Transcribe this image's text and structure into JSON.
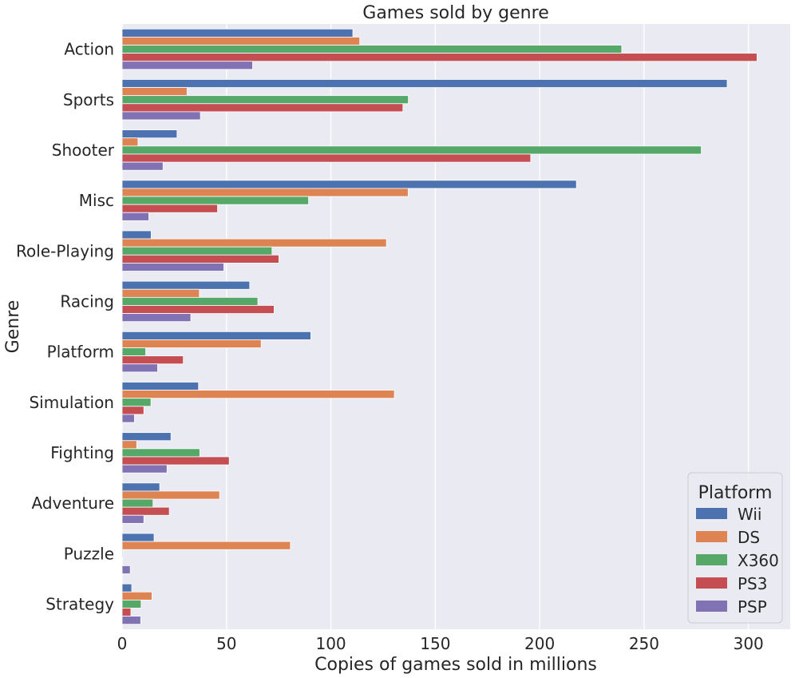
{
  "chart_data": {
    "type": "bar",
    "orientation": "horizontal",
    "title": "Games sold by genre",
    "xlabel": "Copies of games sold in millions",
    "ylabel": "Genre",
    "xlim": [
      0,
      320
    ],
    "xticks": [
      0,
      50,
      100,
      150,
      200,
      250,
      300
    ],
    "grid": true,
    "legend_title": "Platform",
    "legend_position": "lower right",
    "categories": [
      "Action",
      "Sports",
      "Shooter",
      "Misc",
      "Role-Playing",
      "Racing",
      "Platform",
      "Simulation",
      "Fighting",
      "Adventure",
      "Puzzle",
      "Strategy"
    ],
    "series": [
      {
        "name": "Wii",
        "color": "#4c72b0",
        "values": [
          110.5,
          289.8,
          26.3,
          217.6,
          13.9,
          61.1,
          90.4,
          36.6,
          23.4,
          18.0,
          15.3,
          4.6
        ]
      },
      {
        "name": "DS",
        "color": "#dd8452",
        "values": [
          113.8,
          31.1,
          7.6,
          137.0,
          126.6,
          37.0,
          66.6,
          130.4,
          7.0,
          46.7,
          80.6,
          14.3
        ]
      },
      {
        "name": "X360",
        "color": "#55a868",
        "values": [
          239.3,
          137.1,
          277.4,
          89.3,
          71.8,
          65.0,
          11.3,
          13.8,
          37.2,
          14.8,
          0.4,
          9.1
        ]
      },
      {
        "name": "PS3",
        "color": "#c44e52",
        "values": [
          304.1,
          134.5,
          195.7,
          45.7,
          75.1,
          72.8,
          29.3,
          10.4,
          51.3,
          22.6,
          0.0,
          4.2
        ]
      },
      {
        "name": "PSP",
        "color": "#8172b3",
        "values": [
          62.5,
          37.5,
          19.6,
          12.8,
          48.7,
          32.9,
          17.0,
          5.9,
          21.5,
          10.4,
          3.9,
          8.9
        ]
      }
    ]
  }
}
